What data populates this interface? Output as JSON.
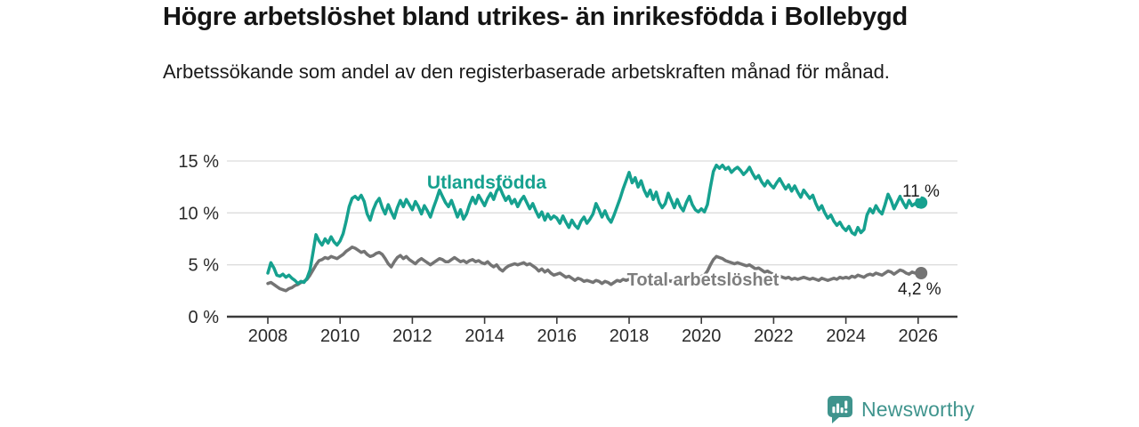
{
  "header": {
    "title": "Högre arbetslöshet bland utrikes- än inrikesfödda i Bollebygd",
    "subtitle": "Arbetssökande som andel av den registerbaserade arbetskraften månad för månad."
  },
  "chart_data": {
    "type": "line",
    "title": "Högre arbetslöshet bland utrikes- än inrikesfödda i Bollebygd",
    "subtitle": "Arbetssökande som andel av den registerbaserade arbetskraften månad för månad.",
    "x_unit": "month",
    "x_start": "2008-01",
    "x_end": "2026-02",
    "x_ticks": [
      2008,
      2010,
      2012,
      2014,
      2016,
      2018,
      2020,
      2022,
      2024,
      2026
    ],
    "y_ticks": [
      {
        "label": "0 %",
        "value": 0
      },
      {
        "label": "5 %",
        "value": 5
      },
      {
        "label": "10 %",
        "value": 10
      },
      {
        "label": "15 %",
        "value": 15
      }
    ],
    "ylim": [
      0,
      16
    ],
    "grid": "horizontal",
    "legend_position": "inline-labels",
    "series": [
      {
        "name": "Utlandsfödda",
        "color": "#16a18f",
        "end_label": "11 %",
        "end_value": 11.0,
        "values": [
          4.2,
          5.2,
          4.7,
          4.0,
          3.9,
          4.1,
          3.8,
          4.0,
          3.7,
          3.5,
          3.2,
          3.4,
          3.3,
          3.7,
          4.5,
          6.2,
          7.9,
          7.3,
          6.9,
          7.5,
          7.1,
          7.7,
          7.2,
          6.9,
          7.3,
          8.0,
          9.2,
          10.6,
          11.4,
          11.6,
          11.3,
          11.7,
          11.1,
          9.9,
          9.3,
          10.3,
          11.0,
          11.4,
          10.5,
          9.9,
          10.8,
          10.1,
          9.5,
          10.5,
          11.2,
          10.6,
          11.3,
          10.8,
          10.3,
          11.1,
          10.6,
          9.9,
          10.7,
          10.2,
          9.6,
          10.5,
          11.3,
          12.2,
          11.6,
          11.0,
          10.6,
          11.2,
          10.4,
          9.6,
          10.3,
          9.4,
          9.9,
          10.8,
          11.5,
          10.9,
          11.7,
          11.2,
          10.7,
          11.4,
          11.9,
          11.3,
          12.1,
          12.5,
          11.8,
          11.2,
          11.6,
          10.9,
          11.3,
          10.6,
          11.2,
          11.6,
          11.0,
          10.4,
          10.9,
          10.2,
          9.6,
          10.1,
          9.3,
          9.9,
          9.4,
          9.7,
          9.5,
          9.0,
          9.7,
          9.1,
          8.6,
          9.3,
          8.8,
          8.5,
          9.2,
          9.6,
          9.0,
          9.4,
          9.9,
          10.9,
          10.3,
          9.6,
          10.2,
          9.5,
          9.1,
          9.8,
          10.6,
          11.4,
          12.3,
          13.1,
          13.9,
          12.9,
          13.4,
          12.5,
          13.1,
          12.2,
          11.6,
          12.2,
          11.3,
          12.0,
          11.0,
          10.5,
          10.9,
          11.9,
          11.2,
          10.5,
          11.3,
          10.6,
          10.2,
          11.0,
          11.6,
          10.8,
          10.3,
          10.1,
          10.4,
          10.1,
          10.8,
          12.5,
          14.0,
          14.6,
          14.3,
          14.6,
          14.2,
          14.4,
          13.9,
          14.2,
          14.4,
          14.1,
          13.7,
          14.0,
          14.4,
          13.8,
          13.3,
          13.6,
          13.0,
          12.6,
          13.1,
          12.7,
          12.4,
          12.9,
          13.3,
          12.8,
          12.3,
          12.7,
          12.1,
          12.6,
          12.0,
          11.5,
          12.2,
          11.8,
          11.4,
          11.7,
          10.9,
          10.3,
          10.7,
          10.0,
          9.5,
          9.8,
          9.2,
          8.8,
          9.1,
          8.6,
          8.3,
          8.7,
          8.1,
          7.9,
          8.6,
          8.1,
          8.4,
          9.8,
          10.4,
          10.0,
          10.7,
          10.2,
          9.9,
          10.8,
          11.8,
          11.2,
          10.4,
          11.0,
          11.6,
          11.0,
          10.5,
          11.2,
          10.7,
          10.9,
          10.6,
          11.0
        ]
      },
      {
        "name": "Total arbetslöshet",
        "color": "#747474",
        "end_label": "4,2 %",
        "end_value": 4.2,
        "values": [
          3.2,
          3.3,
          3.1,
          2.9,
          2.7,
          2.6,
          2.5,
          2.7,
          2.8,
          3.0,
          3.1,
          3.3,
          3.4,
          3.6,
          4.0,
          4.5,
          5.0,
          5.4,
          5.5,
          5.7,
          5.6,
          5.8,
          5.7,
          5.6,
          5.8,
          6.0,
          6.3,
          6.5,
          6.7,
          6.6,
          6.4,
          6.2,
          6.3,
          6.0,
          5.8,
          5.9,
          6.1,
          6.2,
          6.0,
          5.6,
          5.1,
          4.8,
          5.3,
          5.7,
          5.9,
          5.6,
          5.8,
          5.5,
          5.3,
          5.1,
          5.4,
          5.6,
          5.4,
          5.2,
          5.0,
          5.2,
          5.4,
          5.6,
          5.5,
          5.3,
          5.3,
          5.5,
          5.7,
          5.5,
          5.3,
          5.4,
          5.2,
          5.4,
          5.5,
          5.3,
          5.4,
          5.2,
          5.1,
          5.3,
          5.0,
          4.8,
          5.0,
          4.6,
          4.4,
          4.7,
          4.9,
          5.0,
          5.1,
          5.0,
          5.1,
          5.2,
          5.0,
          5.1,
          4.9,
          4.7,
          4.4,
          4.6,
          4.3,
          4.5,
          4.2,
          4.0,
          4.1,
          4.2,
          4.0,
          3.8,
          3.9,
          3.7,
          3.5,
          3.7,
          3.6,
          3.4,
          3.5,
          3.4,
          3.3,
          3.5,
          3.4,
          3.2,
          3.4,
          3.3,
          3.1,
          3.3,
          3.5,
          3.4,
          3.6,
          3.5,
          3.6,
          3.7,
          3.6,
          3.5,
          3.7,
          3.6,
          3.4,
          3.6,
          3.5,
          3.4,
          3.6,
          3.5,
          3.6,
          3.5,
          3.4,
          3.6,
          3.5,
          3.4,
          3.5,
          3.6,
          3.5,
          3.6,
          3.7,
          3.8,
          3.9,
          4.0,
          4.4,
          5.0,
          5.5,
          5.8,
          5.7,
          5.6,
          5.4,
          5.3,
          5.2,
          5.1,
          5.2,
          5.1,
          5.0,
          4.9,
          5.0,
          4.8,
          4.6,
          4.7,
          4.5,
          4.3,
          4.4,
          4.2,
          4.1,
          4.0,
          3.9,
          3.8,
          3.7,
          3.8,
          3.6,
          3.7,
          3.6,
          3.7,
          3.8,
          3.7,
          3.6,
          3.7,
          3.6,
          3.5,
          3.7,
          3.6,
          3.5,
          3.6,
          3.7,
          3.6,
          3.8,
          3.7,
          3.8,
          3.7,
          3.9,
          3.8,
          4.0,
          3.9,
          3.8,
          4.0,
          4.1,
          4.0,
          4.2,
          4.1,
          4.0,
          4.2,
          4.4,
          4.3,
          4.1,
          4.3,
          4.5,
          4.4,
          4.2,
          4.1,
          4.3,
          4.2,
          4.1,
          4.2
        ]
      }
    ]
  },
  "footer": {
    "brand": "Newsworthy"
  },
  "colors": {
    "accent_teal": "#16a18f",
    "line_gray": "#747474",
    "label_gray": "#7e7e7e",
    "brand_teal": "#3f948d",
    "gridline": "#dcdcdc",
    "axis": "#3b3b3b"
  }
}
